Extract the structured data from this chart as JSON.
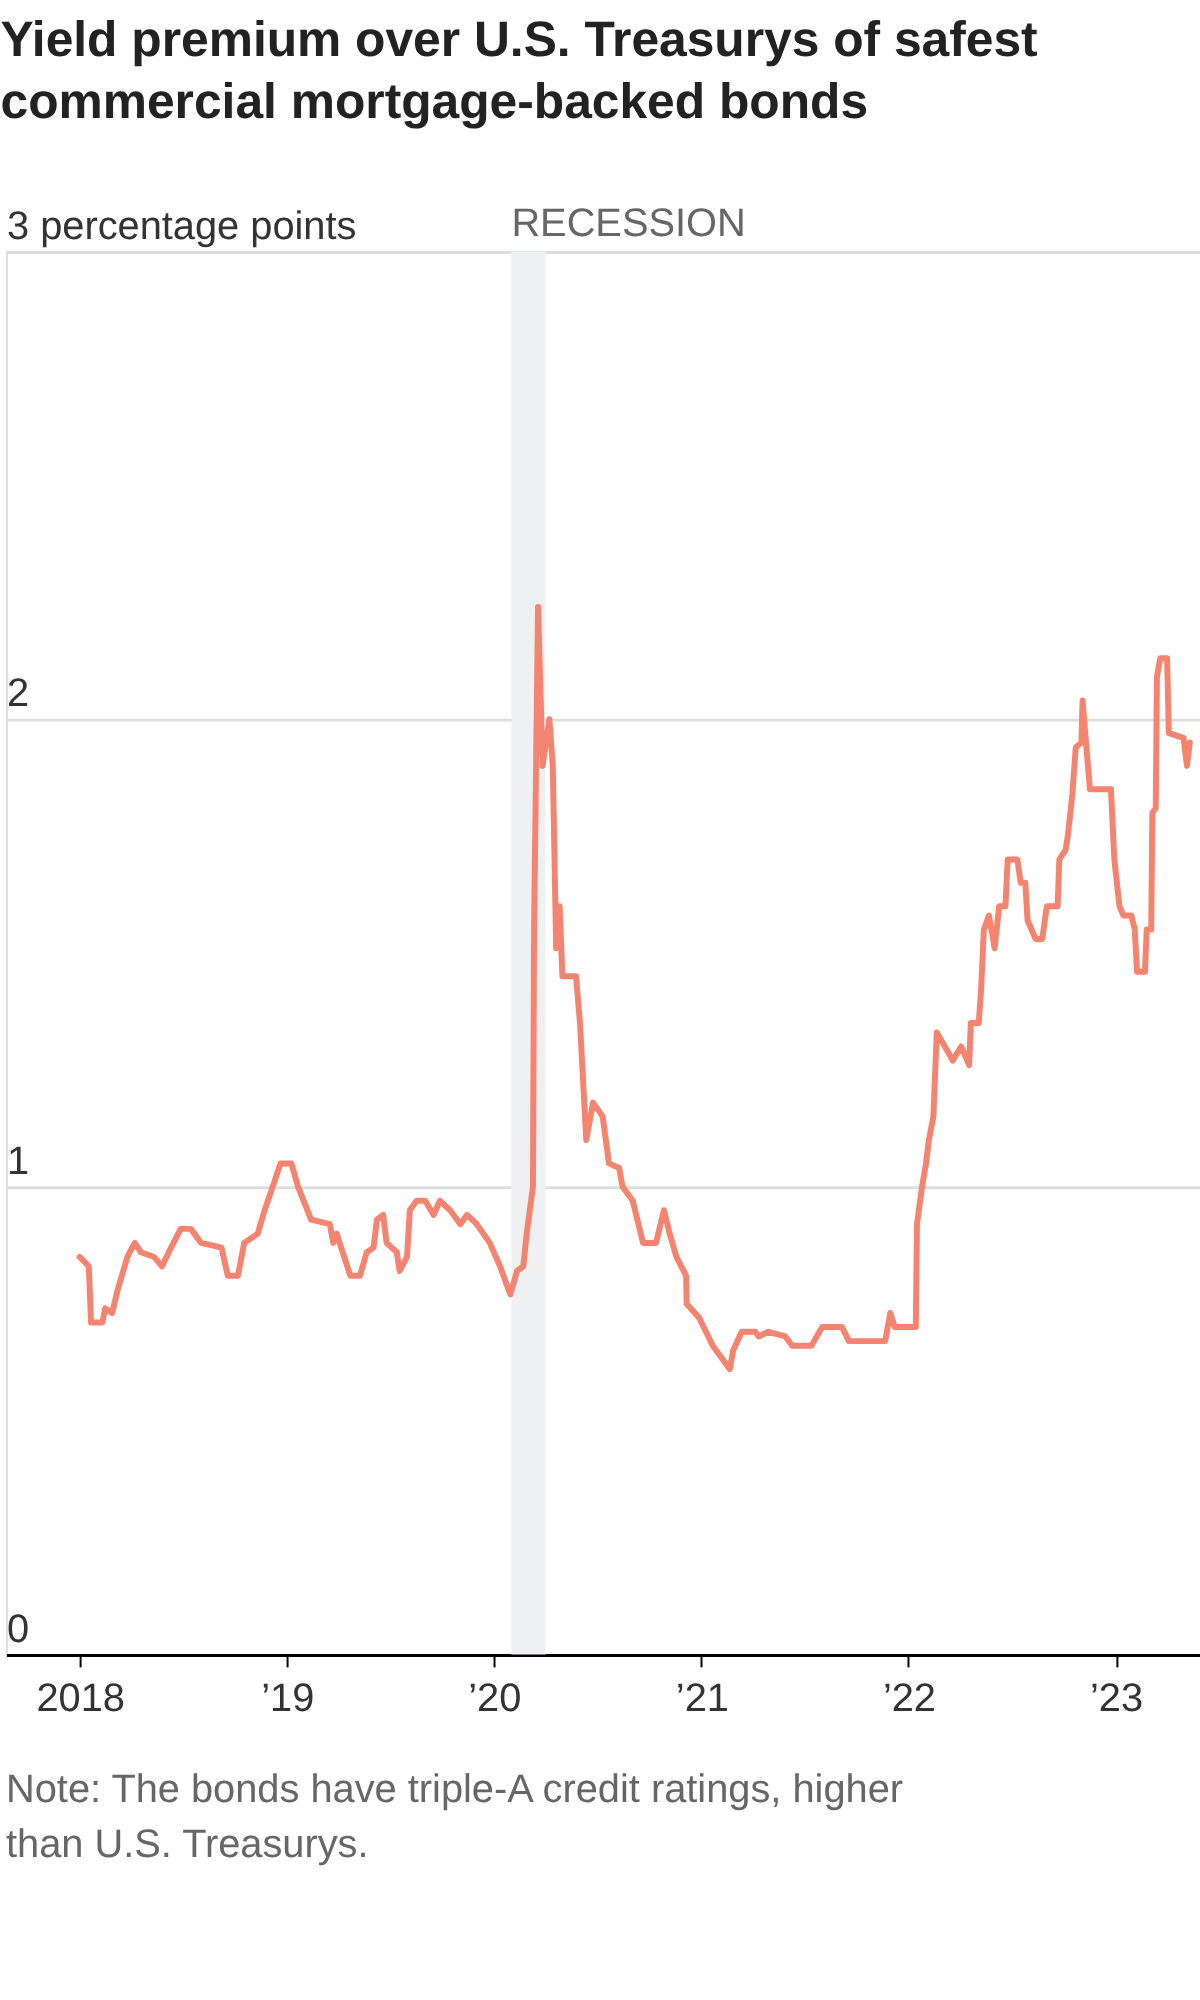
{
  "chart_data": {
    "type": "line",
    "title": "Yield premium over U.S. Treasurys of safest commercial mortgage-backed bonds",
    "annotations": [
      "Note: The bonds have triple-A credit ratings, higher than U.S. Treasurys."
    ],
    "xlim": [
      "2017-08-24",
      "2023-05-30"
    ],
    "xticks": [
      {
        "value": "2018-01-01",
        "label": "2018"
      },
      {
        "value": "2019-01-01",
        "label": "’19"
      },
      {
        "value": "2020-01-01",
        "label": "’20"
      },
      {
        "value": "2021-01-01",
        "label": "’21"
      },
      {
        "value": "2022-01-01",
        "label": "’22"
      },
      {
        "value": "2023-01-01",
        "label": "’23"
      }
    ],
    "ylim": [
      0,
      3
    ],
    "yticks": [
      0,
      1,
      2,
      {
        "value": 3,
        "label": "3 percentage points"
      }
    ],
    "grid": "y",
    "legend": false,
    "marker": "none",
    "line_style": "solid",
    "bands": [
      {
        "axis": "x",
        "from": "2020-02-01",
        "to": "2020-04-01",
        "label": "RECESSION",
        "color": "#eff0f2"
      }
    ],
    "series": [
      {
        "color": "#f4846f",
        "x": [
          "2018-01-01",
          "2018-01-17",
          "2018-01-21",
          "2018-02-10",
          "2018-02-15",
          "2018-02-27",
          "2018-03-09",
          "2018-03-26",
          "2018-04-08",
          "2018-04-19",
          "2018-05-12",
          "2018-05-26",
          "2018-06-11",
          "2018-06-28",
          "2018-07-16",
          "2018-08-03",
          "2018-09-08",
          "2018-09-19",
          "2018-10-07",
          "2018-10-18",
          "2018-11-11",
          "2018-11-23",
          "2018-12-10",
          "2018-12-21",
          "2019-01-09",
          "2019-01-21",
          "2019-02-13",
          "2019-03-18",
          "2019-03-24",
          "2019-03-30",
          "2019-04-23",
          "2019-05-10",
          "2019-05-22",
          "2019-06-03",
          "2019-06-09",
          "2019-06-20",
          "2019-06-26",
          "2019-07-14",
          "2019-07-19",
          "2019-08-01",
          "2019-08-06",
          "2019-08-18",
          "2019-09-02",
          "2019-09-17",
          "2019-09-28",
          "2019-10-16",
          "2019-11-03",
          "2019-11-15",
          "2019-12-02",
          "2019-12-25",
          "2020-01-12",
          "2020-01-30",
          "2020-02-11",
          "2020-02-22",
          "2020-02-28",
          "2020-03-10",
          "2020-03-12",
          "2020-03-19",
          "2020-03-27",
          "2020-04-08",
          "2020-04-14",
          "2020-04-20",
          "2020-04-26",
          "2020-05-01",
          "2020-05-25",
          "2020-06-01",
          "2020-06-12",
          "2020-06-24",
          "2020-07-11",
          "2020-07-22",
          "2020-08-09",
          "2020-08-15",
          "2020-09-02",
          "2020-09-20",
          "2020-10-13",
          "2020-10-27",
          "2020-11-06",
          "2020-11-18",
          "2020-12-05",
          "2020-12-06",
          "2020-12-28",
          "2021-01-21",
          "2021-02-08",
          "2021-02-20",
          "2021-02-26",
          "2021-03-13",
          "2021-04-06",
          "2021-04-12",
          "2021-04-29",
          "2021-05-29",
          "2021-06-10",
          "2021-07-14",
          "2021-08-02",
          "2021-09-06",
          "2021-09-18",
          "2021-11-21",
          "2021-11-30",
          "2021-12-08",
          "2022-01-14",
          "2022-01-16",
          "2022-01-25",
          "2022-02-01",
          "2022-02-06",
          "2022-02-14",
          "2022-02-20",
          "2022-03-11",
          "2022-03-20",
          "2022-04-04",
          "2022-04-18",
          "2022-04-21",
          "2022-05-05",
          "2022-05-09",
          "2022-05-14",
          "2022-05-23",
          "2022-06-02",
          "2022-06-10",
          "2022-06-21",
          "2022-06-25",
          "2022-07-12",
          "2022-07-18",
          "2022-07-26",
          "2022-07-30",
          "2022-08-13",
          "2022-08-25",
          "2022-09-02",
          "2022-09-21",
          "2022-09-24",
          "2022-10-05",
          "2022-10-09",
          "2022-10-17",
          "2022-10-23",
          "2022-11-02",
          "2022-11-04",
          "2022-11-10",
          "2022-11-17",
          "2022-12-24",
          "2022-12-30",
          "2023-01-08",
          "2023-01-15",
          "2023-01-29",
          "2023-02-04",
          "2023-02-08",
          "2023-02-22",
          "2023-02-25",
          "2023-03-05",
          "2023-03-07",
          "2023-03-13",
          "2023-03-15",
          "2023-03-21",
          "2023-04-02",
          "2023-04-05",
          "2023-05-01",
          "2023-05-07",
          "2023-05-12"
        ],
        "values": [
          0.85,
          0.83,
          0.71,
          0.71,
          0.74,
          0.73,
          0.78,
          0.85,
          0.88,
          0.86,
          0.85,
          0.83,
          0.87,
          0.91,
          0.91,
          0.88,
          0.87,
          0.81,
          0.81,
          0.88,
          0.9,
          0.95,
          1.01,
          1.05,
          1.05,
          1.0,
          0.93,
          0.92,
          0.88,
          0.9,
          0.81,
          0.81,
          0.86,
          0.87,
          0.93,
          0.94,
          0.88,
          0.86,
          0.82,
          0.85,
          0.95,
          0.97,
          0.97,
          0.94,
          0.97,
          0.95,
          0.92,
          0.94,
          0.92,
          0.88,
          0.83,
          0.77,
          0.82,
          0.83,
          0.9,
          1.0,
          1.55,
          2.24,
          1.9,
          2.0,
          1.9,
          1.51,
          1.6,
          1.45,
          1.45,
          1.35,
          1.1,
          1.18,
          1.15,
          1.05,
          1.04,
          1.0,
          0.97,
          0.88,
          0.88,
          0.95,
          0.9,
          0.85,
          0.81,
          0.75,
          0.72,
          0.66,
          0.63,
          0.61,
          0.65,
          0.69,
          0.69,
          0.68,
          0.69,
          0.68,
          0.66,
          0.66,
          0.7,
          0.7,
          0.67,
          0.67,
          0.73,
          0.7,
          0.7,
          0.92,
          1.0,
          1.05,
          1.1,
          1.15,
          1.33,
          1.29,
          1.27,
          1.3,
          1.26,
          1.35,
          1.35,
          1.42,
          1.55,
          1.58,
          1.51,
          1.6,
          1.6,
          1.7,
          1.7,
          1.65,
          1.65,
          1.57,
          1.53,
          1.53,
          1.6,
          1.6,
          1.7,
          1.72,
          1.75,
          1.84,
          1.94,
          1.95,
          2.04,
          1.95,
          1.85,
          1.85,
          1.7,
          1.6,
          1.58,
          1.58,
          1.55,
          1.46,
          1.46,
          1.55,
          1.55,
          1.8,
          1.81,
          2.09,
          2.13,
          2.13,
          1.97,
          1.96,
          1.9,
          1.95
        ]
      }
    ]
  }
}
